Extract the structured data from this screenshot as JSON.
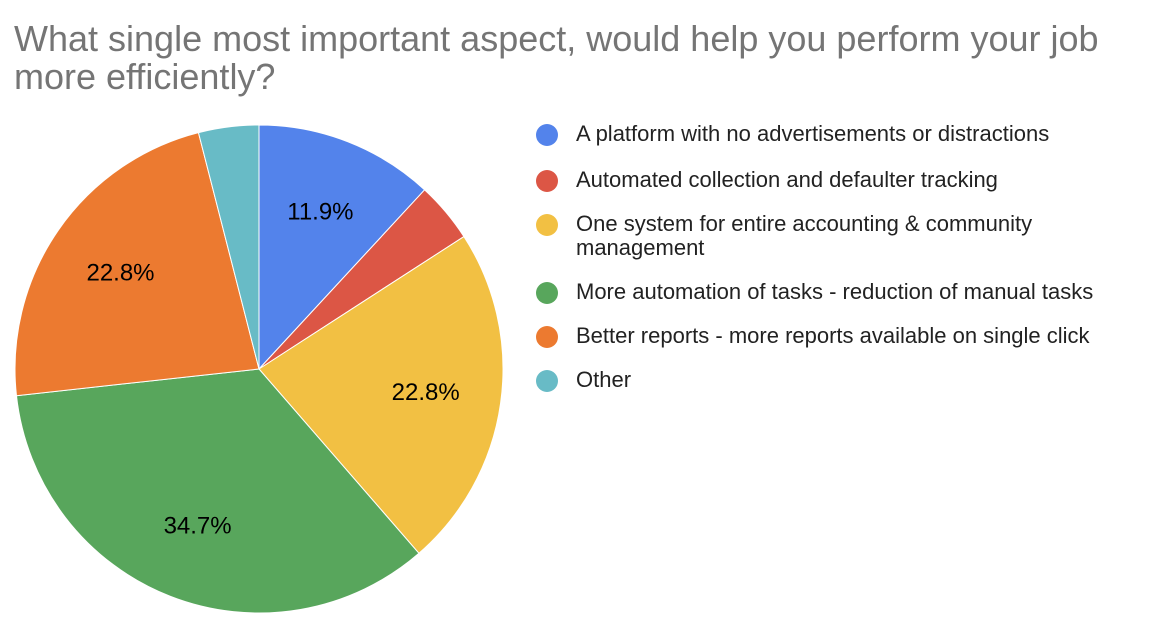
{
  "chart_data": {
    "type": "pie",
    "title": "What single most important aspect, would help you perform your job more efficiently?",
    "legend_position": "right",
    "slices": [
      {
        "label": "A platform with no advertisements or distractions",
        "value": 11.9,
        "value_label": "11.9%",
        "color": "#5383EB"
      },
      {
        "label": "Automated collection and defaulter tracking",
        "value": 4.0,
        "value_label": "",
        "color": "#DC5645"
      },
      {
        "label": "One system for entire accounting & community management",
        "value": 22.8,
        "value_label": "22.8%",
        "color": "#F2C043"
      },
      {
        "label": "More automation of tasks - reduction of manual tasks",
        "value": 34.7,
        "value_label": "34.7%",
        "color": "#58A65C"
      },
      {
        "label": "Better reports - more reports available on single click",
        "value": 22.8,
        "value_label": "22.8%",
        "color": "#EC7A30"
      },
      {
        "label": "Other",
        "value": 4.0,
        "value_label": "",
        "color": "#68BBC6"
      }
    ]
  }
}
